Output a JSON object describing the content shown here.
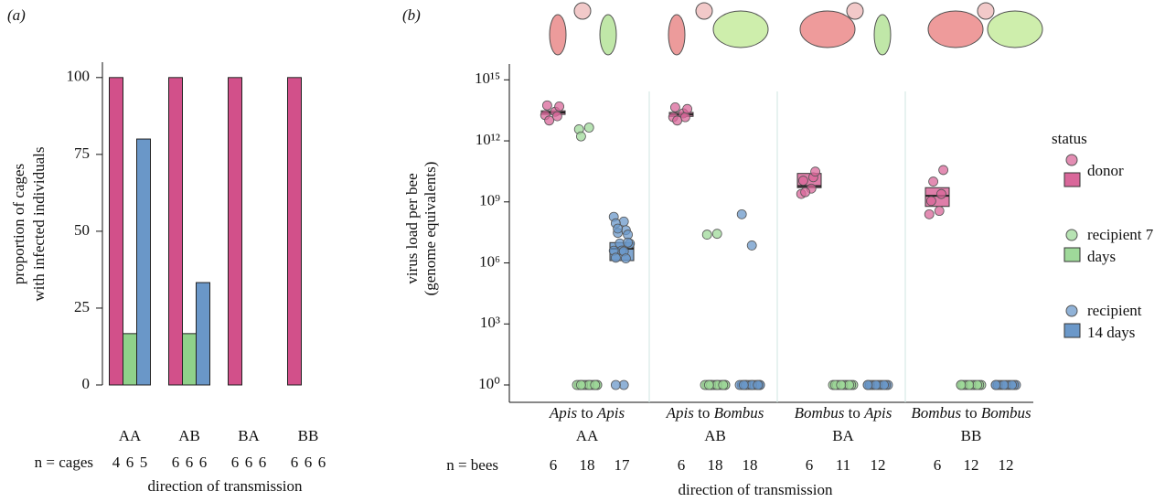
{
  "chart_data": [
    {
      "type": "bar",
      "panel": "(a)",
      "ylabel": [
        "proportion of cages",
        "with infected individuals"
      ],
      "xlabel": "direction of transmission",
      "n_label": "n = cages",
      "categories": [
        "AA",
        "AB",
        "BA",
        "BB"
      ],
      "n": [
        [
          4,
          6,
          5
        ],
        [
          6,
          6,
          6
        ],
        [
          6,
          6,
          6
        ],
        [
          6,
          6,
          6
        ]
      ],
      "series": [
        {
          "color": "#d2508a",
          "values": [
            100,
            100,
            100,
            100
          ]
        },
        {
          "color": "#8fd18a",
          "values": [
            16.7,
            16.7,
            0,
            0
          ]
        },
        {
          "color": "#6a97c8",
          "values": [
            80,
            33.3,
            0,
            0
          ]
        }
      ],
      "ylim": [
        0,
        105
      ],
      "yticks": [
        0,
        25,
        50,
        75,
        100
      ]
    },
    {
      "type": "box_strip",
      "panel": "(b)",
      "ylabel": [
        "virus load per bee",
        "(genome equivalents)"
      ],
      "xlabel": "direction of transmission",
      "n_label": "n = bees",
      "legend_title": "status",
      "log_scale": true,
      "from": [
        "Apis",
        "Apis",
        "Bombus",
        "Bombus"
      ],
      "connector": "to",
      "to": [
        "Apis",
        "Bombus",
        "Apis",
        "Bombus"
      ],
      "codes": [
        "AA",
        "AB",
        "BA",
        "BB"
      ],
      "n": [
        [
          6,
          18,
          17
        ],
        [
          6,
          18,
          18
        ],
        [
          6,
          11,
          12
        ],
        [
          6,
          12,
          12
        ]
      ],
      "ylim": [
        0.14,
        6000000000000000.0
      ],
      "yticks": [
        {
          "value": 1,
          "label": "10⁰"
        },
        {
          "value": 1000,
          "label": "10³"
        },
        {
          "value": 1000000,
          "label": "10⁶"
        },
        {
          "value": 1000000000,
          "label": "10⁹"
        },
        {
          "value": 1000000000000,
          "label": "10¹²"
        },
        {
          "value": 1000000000000000,
          "label": "10¹⁵"
        }
      ],
      "series": [
        {
          "name": "donor",
          "color": "#d9679a",
          "groups": [
            {
              "points": [
                15000000000000.0,
                30000000000000.0,
                50000000000000.0,
                20000000000000.0,
                10000000000000.0,
                40000000000000.0
              ],
              "box": {
                "q1": 20000000000000.0,
                "median": 25000000000000.0,
                "q3": 30000000000000.0
              }
            },
            {
              "points": [
                12000000000000.0,
                25000000000000.0,
                40000000000000.0,
                18000000000000.0,
                10000000000000.0,
                30000000000000.0
              ],
              "box": {
                "q1": 16000000000000.0,
                "median": 20000000000000.0,
                "q3": 25000000000000.0
              }
            },
            {
              "points": [
                2000000000.0,
                5000000000.0,
                10000000000.0,
                20000000000.0,
                3000000000.0,
                25000000000.0
              ],
              "box": {
                "q1": 5000000000.0,
                "median": 6000000000.0,
                "q3": 25000000000.0
              }
            },
            {
              "points": [
                200000000.0,
                400000000.0,
                1000000000.0,
                3000000000.0,
                10000000000.0,
                30000000000.0
              ],
              "box": {
                "q1": 600000000.0,
                "median": 2000000000.0,
                "q3": 5000000000.0
              }
            }
          ]
        },
        {
          "name": "recipient 7 days",
          "color": "#9fd99a",
          "groups": [
            {
              "points": [
                3000000000000.0,
                5000000000000.0,
                1500000000000.0,
                1,
                1,
                1,
                1,
                1,
                1,
                1,
                1,
                1,
                1,
                1,
                1,
                1,
                1,
                1
              ],
              "box": {
                "q1": 1,
                "median": 1,
                "q3": 1
              }
            },
            {
              "points": [
                20000000.0,
                30000000.0,
                1,
                1,
                1,
                1,
                1,
                1,
                1,
                1,
                1,
                1,
                1,
                1,
                1,
                1,
                1,
                1
              ],
              "box": {
                "q1": 1,
                "median": 1,
                "q3": 1
              }
            },
            {
              "points": [
                1,
                1,
                1,
                1,
                1,
                1,
                1,
                1,
                1,
                1,
                1
              ],
              "box": {
                "q1": 1,
                "median": 1,
                "q3": 1
              }
            },
            {
              "points": [
                1,
                1,
                1,
                1,
                1,
                1,
                1,
                1,
                1,
                1,
                1,
                1
              ],
              "box": {
                "q1": 1,
                "median": 1,
                "q3": 1
              }
            }
          ]
        },
        {
          "name": "recipient 14 days",
          "color": "#6b98c9",
          "groups": [
            {
              "points": [
                150000000.0,
                120000000.0,
                80000000.0,
                50000000.0,
                30000000.0,
                20000000.0,
                10000000.0,
                8000000.0,
                5000000.0,
                4000000.0,
                3000000.0,
                2000000.0,
                1500000.0,
                60000000.0,
                10000000.0,
                1,
                1
              ],
              "box": {
                "q1": 1300000.0,
                "median": 5000000.0,
                "q3": 10000000.0
              }
            },
            {
              "points": [
                200000000.0,
                8000000.0,
                1,
                1,
                1,
                1,
                1,
                1,
                1,
                1,
                1,
                1,
                1,
                1,
                1,
                1,
                1,
                1
              ],
              "box": {
                "q1": 1,
                "median": 1,
                "q3": 1
              }
            },
            {
              "points": [
                1,
                1,
                1,
                1,
                1,
                1,
                1,
                1,
                1,
                1,
                1,
                1
              ],
              "box": {
                "q1": 1,
                "median": 1,
                "q3": 1
              }
            },
            {
              "points": [
                1,
                1,
                1,
                1,
                1,
                1,
                1,
                1,
                1,
                1,
                1,
                1
              ],
              "box": {
                "q1": 1,
                "median": 1,
                "q3": 1
              }
            }
          ]
        }
      ]
    }
  ]
}
